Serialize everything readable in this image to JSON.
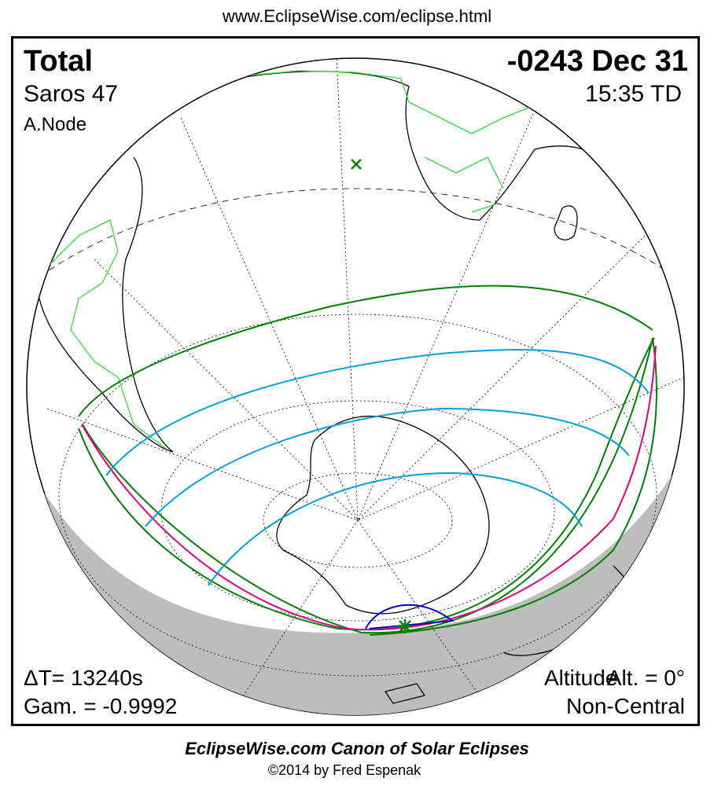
{
  "header": {
    "url": "www.EclipseWise.com/eclipse.html"
  },
  "info": {
    "type": "Total",
    "saros": "Saros  47",
    "node": "A.Node",
    "date": "-0243 Dec 31",
    "time": "15:35 TD",
    "delta_t": "ΔT=  13240s",
    "gamma": "Gam. = -0.9992",
    "altitude_overlap": "Altitude",
    "altitude": "Alt. = 0°",
    "centrality": "Non-Central"
  },
  "footer": {
    "canon": "EclipseWise.com Canon of Solar Eclipses",
    "copyright": "©2014 by Fred Espenak"
  },
  "colors": {
    "limits": "#008000",
    "central_line": "#e0007f",
    "contours": "#00a0e0",
    "max_eclipse_region": "#0000cc",
    "night": "#bdbdbd",
    "land_lit": "#33dd33"
  }
}
